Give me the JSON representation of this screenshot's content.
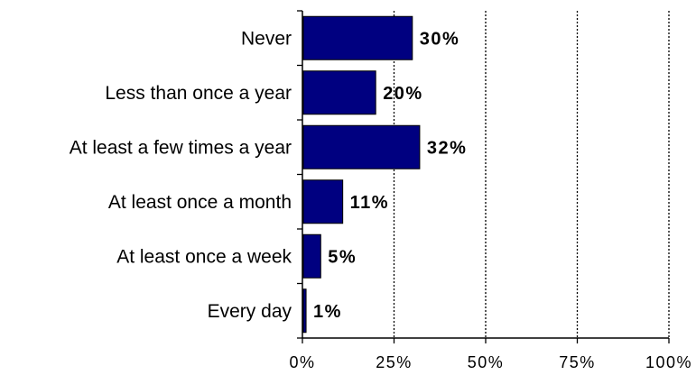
{
  "chart_data": {
    "type": "bar",
    "orientation": "horizontal",
    "categories": [
      "Never",
      "Less than once a year",
      "At least a few times a year",
      "At least once a month",
      "At least once a week",
      "Every day"
    ],
    "values": [
      30,
      20,
      32,
      11,
      5,
      1
    ],
    "data_labels": [
      "30%",
      "20%",
      "32%",
      "11%",
      "5%",
      "1%"
    ],
    "x_ticks": [
      0,
      25,
      50,
      75,
      100
    ],
    "x_tick_labels": [
      "0%",
      "25%",
      "50%",
      "75%",
      "100%"
    ],
    "xlim": [
      0,
      100
    ],
    "grid": "vertical dotted",
    "legend": "none",
    "bar_color": "#000080"
  }
}
